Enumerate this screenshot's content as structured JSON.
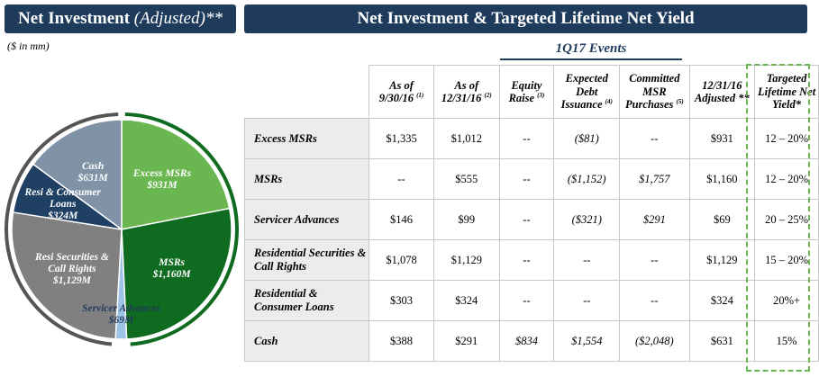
{
  "chart_data": {
    "type": "pie",
    "title": "Net Investment",
    "title_note": "(Adjusted)**",
    "subtitle": "($ in mm)",
    "categories": [
      "Excess MSRs",
      "MSRs",
      "Servicer Advances",
      "Resi Securities & Call Rights",
      "Resi & Consumer Loans",
      "Cash"
    ],
    "values": [
      931,
      1160,
      69,
      1129,
      324,
      631
    ],
    "value_labels": [
      "$931M",
      "$1,160M",
      "$69M",
      "$1,129M",
      "$324M",
      "$631M"
    ],
    "colors": [
      "#6ab650",
      "#0f6b1f",
      "#9dc3e6",
      "#808080",
      "#1f3f63",
      "#7f92a6"
    ]
  },
  "table": {
    "title": "Net Investment & Targeted Lifetime Net Yield",
    "group_header": "1Q17 Events",
    "headers": [
      {
        "text": "As of 9/30/16",
        "note": "(1)"
      },
      {
        "text": "As of 12/31/16",
        "note": "(2)"
      },
      {
        "text": "Equity Raise",
        "note": "(3)"
      },
      {
        "text": "Expected Debt Issuance",
        "note": "(4)"
      },
      {
        "text": "Committed MSR Purchases",
        "note": "(5)"
      },
      {
        "text": "12/31/16 Adjusted **",
        "note": null
      },
      {
        "text": "Targeted Lifetime Net Yield*",
        "note": null
      }
    ],
    "rows": [
      [
        "Excess MSRs",
        "$1,335",
        "$1,012",
        "--",
        "($81)",
        "--",
        "$931",
        "12 – 20%"
      ],
      [
        "MSRs",
        "--",
        "$555",
        "--",
        "($1,152)",
        "$1,757",
        "$1,160",
        "12 – 20%"
      ],
      [
        "Servicer Advances",
        "$146",
        "$99",
        "--",
        "($321)",
        "$291",
        "$69",
        "20 – 25%"
      ],
      [
        "Residential Securities & Call Rights",
        "$1,078",
        "$1,129",
        "--",
        "--",
        "--",
        "$1,129",
        "15 – 20%"
      ],
      [
        "Residential & Consumer Loans",
        "$303",
        "$324",
        "--",
        "--",
        "--",
        "$324",
        "20%+"
      ],
      [
        "Cash",
        "$388",
        "$291",
        "$834",
        "$1,554",
        "($2,048)",
        "$631",
        "15%"
      ]
    ]
  }
}
